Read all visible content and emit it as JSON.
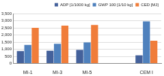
{
  "chart_data": {
    "type": "bar",
    "categories": [
      "MI-1",
      "MI-3",
      "MI-5",
      null,
      "CEM I"
    ],
    "series": [
      {
        "name": "ADP [1/1000 kg]",
        "color": "#44619b",
        "values": [
          870,
          900,
          950,
          null,
          580
        ]
      },
      {
        "name": "GWP 100 [1/10 kg]",
        "color": "#4f81bd",
        "values": [
          1300,
          1380,
          1480,
          null,
          2950
        ]
      },
      {
        "name": "CED [MJ]",
        "color": "#f07d3a",
        "values": [
          2500,
          2650,
          2700,
          null,
          1600
        ]
      }
    ],
    "ylim": [
      0,
      3500
    ],
    "yticks": [
      0,
      500,
      1000,
      1500,
      2000,
      2500,
      3000,
      3500
    ],
    "grid": true,
    "legend": "top"
  }
}
